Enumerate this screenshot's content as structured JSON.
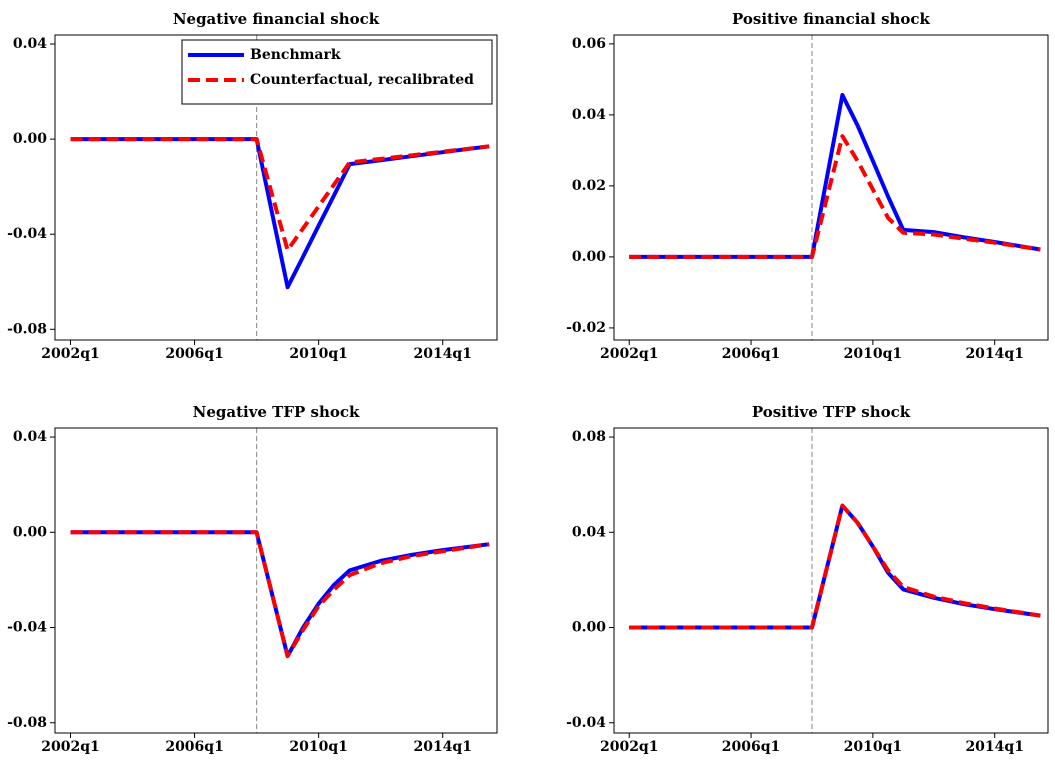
{
  "chart_data": [
    {
      "type": "line",
      "title": "Negative financial shock",
      "x": [
        "2002q1",
        "2008q1",
        "2009q1",
        "2009q3",
        "2010q1",
        "2010q3",
        "2011q1",
        "2012q1",
        "2013q1",
        "2014q1",
        "2015q3"
      ],
      "series": [
        {
          "name": "Benchmark",
          "color": "#0000ff",
          "style": "solid",
          "values": [
            0,
            0,
            -0.0623,
            -0.0494,
            -0.0364,
            -0.0235,
            -0.0105,
            -0.0089,
            -0.0072,
            -0.0055,
            -0.003
          ]
        },
        {
          "name": "Counterfactual, recalibrated",
          "color": "#ff0000",
          "style": "dashed",
          "values": [
            0,
            0,
            -0.0467,
            -0.0375,
            -0.0283,
            -0.019,
            -0.0098,
            -0.0083,
            -0.0068,
            -0.0053,
            -0.003
          ]
        }
      ],
      "xlim": [
        "2001q3",
        "2015q4"
      ],
      "xticks": [
        "2002q1",
        "2006q1",
        "2010q1",
        "2014q1"
      ],
      "vline": "2008q1",
      "ylim": [
        -0.0845,
        0.0438
      ],
      "yticks": [
        -0.08,
        -0.04,
        {
          "value": 0,
          "label": "0.00"
        },
        0.04
      ],
      "legend": "upper right"
    },
    {
      "type": "line",
      "title": "Positive financial shock",
      "x": [
        "2002q1",
        "2008q1",
        "2009q1",
        "2009q3",
        "2010q1",
        "2010q3",
        "2011q1",
        "2012q1",
        "2013q1",
        "2014q1",
        "2015q3"
      ],
      "series": [
        {
          "color": "#0000ff",
          "style": "solid",
          "values": [
            0,
            0,
            0.0456,
            0.037,
            0.027,
            0.017,
            0.0076,
            0.007,
            0.0055,
            0.0042,
            0.0021
          ]
        },
        {
          "color": "#ff0000",
          "style": "dashed",
          "values": [
            0,
            0,
            0.034,
            0.027,
            0.019,
            0.011,
            0.0068,
            0.0063,
            0.0051,
            0.004,
            0.0021
          ]
        }
      ],
      "xlim": [
        "2001q3",
        "2015q4"
      ],
      "xticks": [
        "2002q1",
        "2006q1",
        "2010q1",
        "2014q1"
      ],
      "vline": "2008q1",
      "ylim": [
        -0.0234,
        0.0625
      ],
      "yticks": [
        -0.02,
        {
          "value": 0,
          "label": "0.00"
        },
        0.02,
        0.04,
        0.06
      ]
    },
    {
      "type": "line",
      "title": "Negative TFP shock",
      "x": [
        "2002q1",
        "2008q1",
        "2009q1",
        "2009q3",
        "2010q1",
        "2010q3",
        "2011q1",
        "2012q1",
        "2013q1",
        "2014q1",
        "2015q3"
      ],
      "series": [
        {
          "color": "#0000ff",
          "style": "solid",
          "values": [
            0,
            0,
            -0.052,
            -0.04,
            -0.03,
            -0.022,
            -0.016,
            -0.012,
            -0.0095,
            -0.0075,
            -0.005
          ]
        },
        {
          "color": "#ff0000",
          "style": "dashed",
          "values": [
            0,
            0,
            -0.052,
            -0.041,
            -0.031,
            -0.024,
            -0.018,
            -0.013,
            -0.01,
            -0.008,
            -0.005
          ]
        }
      ],
      "xlim": [
        "2001q3",
        "2015q4"
      ],
      "xticks": [
        "2002q1",
        "2006q1",
        "2010q1",
        "2014q1"
      ],
      "vline": "2008q1",
      "ylim": [
        -0.0843,
        0.0438
      ],
      "yticks": [
        -0.08,
        -0.04,
        {
          "value": 0,
          "label": "0.00"
        },
        0.04
      ]
    },
    {
      "type": "line",
      "title": "Positive TFP shock",
      "x": [
        "2002q1",
        "2008q1",
        "2009q1",
        "2009q3",
        "2010q1",
        "2010q3",
        "2011q1",
        "2012q1",
        "2013q1",
        "2014q1",
        "2015q3"
      ],
      "series": [
        {
          "color": "#0000ff",
          "style": "solid",
          "values": [
            0,
            0,
            0.0512,
            0.044,
            0.034,
            0.023,
            0.016,
            0.0125,
            0.0098,
            0.0077,
            0.005
          ]
        },
        {
          "color": "#ff0000",
          "style": "dashed",
          "values": [
            0,
            0,
            0.0512,
            0.044,
            0.034,
            0.024,
            0.017,
            0.013,
            0.0102,
            0.008,
            0.005
          ]
        }
      ],
      "xlim": [
        "2001q3",
        "2015q4"
      ],
      "xticks": [
        "2002q1",
        "2006q1",
        "2010q1",
        "2014q1"
      ],
      "vline": "2008q1",
      "ylim": [
        -0.0443,
        0.0838
      ],
      "yticks": [
        -0.04,
        {
          "value": 0,
          "label": "0.00"
        },
        0.04,
        0.08
      ]
    }
  ]
}
